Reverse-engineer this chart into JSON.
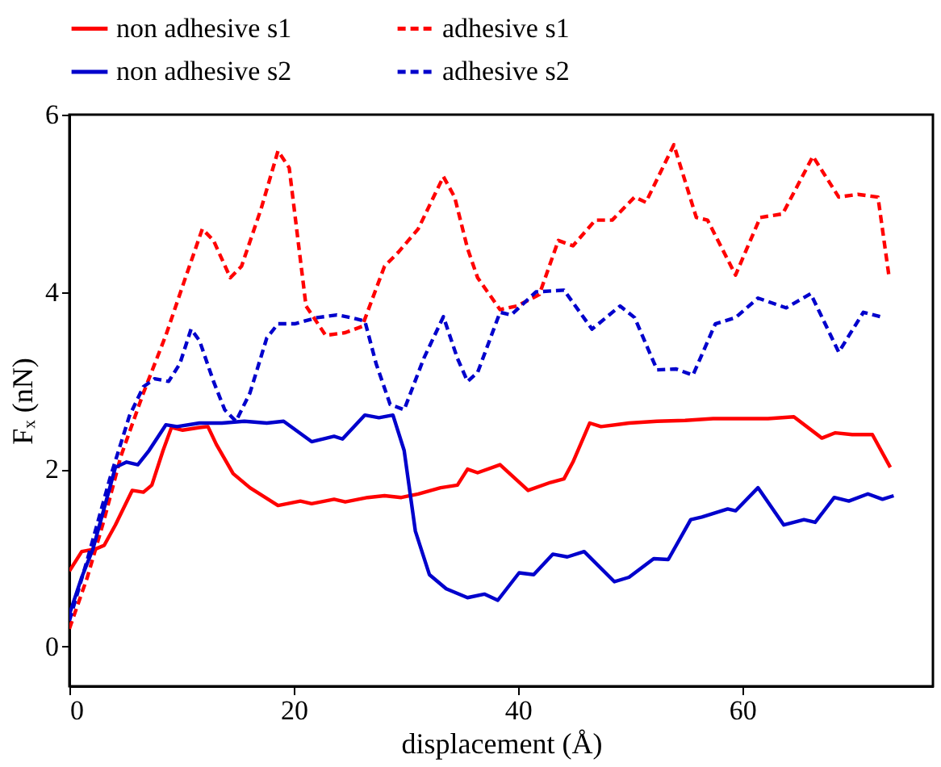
{
  "chart_data": {
    "type": "line",
    "xlabel": "displacement (Å)",
    "ylabel": "Fₓ (nN)",
    "xlim": [
      0,
      77
    ],
    "ylim": [
      -0.45,
      6
    ],
    "xticks": [
      0,
      20,
      40,
      60
    ],
    "yticks": [
      0,
      2,
      4,
      6
    ],
    "grid": false,
    "legend": "top",
    "marker": "none",
    "series": [
      {
        "name": "non adhesive s1",
        "color": "#ff0000",
        "line_style": "solid",
        "x": [
          0,
          1.1,
          2.35,
          3.1,
          4.1,
          5.6,
          6.6,
          7.35,
          8.35,
          9.1,
          10.1,
          11.6,
          12.35,
          13.1,
          14.6,
          16.1,
          18.6,
          20.6,
          21.6,
          23.6,
          24.6,
          26.6,
          28.1,
          29.6,
          31.1,
          33.1,
          34.6,
          35.5,
          36.4,
          38.4,
          40.9,
          42.9,
          44.1,
          44.9,
          46.4,
          47.4,
          49.9,
          52.4,
          54.9,
          57.4,
          59.9,
          62.3,
          64.6,
          67.1,
          68.3,
          69.8,
          71.6,
          73.2
        ],
        "values": [
          0.85,
          1.07,
          1.1,
          1.14,
          1.37,
          1.76,
          1.74,
          1.82,
          2.21,
          2.47,
          2.44,
          2.47,
          2.48,
          2.28,
          1.95,
          1.79,
          1.59,
          1.64,
          1.61,
          1.66,
          1.63,
          1.68,
          1.7,
          1.68,
          1.72,
          1.79,
          1.82,
          2.0,
          1.96,
          2.05,
          1.76,
          1.85,
          1.89,
          2.08,
          2.52,
          2.48,
          2.52,
          2.54,
          2.55,
          2.57,
          2.57,
          2.57,
          2.59,
          2.35,
          2.41,
          2.39,
          2.39,
          2.02
        ]
      },
      {
        "name": "adhesive s1",
        "color": "#ff0000",
        "line_style": "dashed",
        "x": [
          0,
          1.6,
          3.1,
          4.6,
          6.6,
          8.6,
          10.35,
          11.85,
          12.85,
          14.35,
          15.35,
          17.1,
          18.6,
          19.6,
          21.1,
          22.85,
          24.6,
          26.1,
          28.1,
          29.35,
          31.1,
          33.35,
          34.35,
          35.5,
          36.4,
          38.4,
          39.9,
          41.9,
          43.6,
          44.9,
          46.9,
          48.4,
          50.4,
          51.4,
          53.9,
          55.9,
          56.9,
          59.4,
          61.6,
          63.6,
          66.3,
          68.6,
          70.3,
          72.1,
          73.1
        ],
        "values": [
          0.2,
          0.78,
          1.43,
          2.15,
          2.86,
          3.51,
          4.16,
          4.71,
          4.58,
          4.16,
          4.29,
          4.94,
          5.59,
          5.4,
          3.84,
          3.51,
          3.54,
          3.61,
          4.29,
          4.45,
          4.71,
          5.3,
          5.07,
          4.49,
          4.16,
          3.8,
          3.84,
          3.97,
          4.58,
          4.52,
          4.81,
          4.81,
          5.07,
          5.01,
          5.66,
          4.84,
          4.81,
          4.19,
          4.84,
          4.88,
          5.53,
          5.07,
          5.1,
          5.07,
          4.16
        ]
      },
      {
        "name": "non adhesive s2",
        "color": "#0000cc",
        "line_style": "solid",
        "x": [
          0,
          1.1,
          2.1,
          3.1,
          4.1,
          5.1,
          6.1,
          7.1,
          8.6,
          9.6,
          11.6,
          13.6,
          15.6,
          17.6,
          19.1,
          21.6,
          23.6,
          24.35,
          26.35,
          27.6,
          28.85,
          29.85,
          30.85,
          32.1,
          33.6,
          35.5,
          37,
          38.2,
          40.1,
          41.4,
          43.1,
          44.4,
          45.9,
          48.6,
          49.9,
          52.1,
          53.4,
          55.4,
          56.4,
          58.7,
          59.4,
          61.4,
          63.7,
          65.5,
          66.5,
          68.2,
          69.5,
          71.2,
          72.5,
          73.5
        ],
        "values": [
          0.36,
          0.78,
          1.1,
          1.56,
          2.02,
          2.08,
          2.05,
          2.21,
          2.5,
          2.48,
          2.52,
          2.52,
          2.54,
          2.52,
          2.54,
          2.31,
          2.37,
          2.34,
          2.61,
          2.58,
          2.61,
          2.21,
          1.3,
          0.81,
          0.65,
          0.55,
          0.59,
          0.52,
          0.83,
          0.81,
          1.04,
          1.01,
          1.07,
          0.73,
          0.78,
          0.99,
          0.98,
          1.43,
          1.46,
          1.55,
          1.53,
          1.79,
          1.37,
          1.43,
          1.4,
          1.68,
          1.64,
          1.72,
          1.66,
          1.7
        ]
      },
      {
        "name": "adhesive s2",
        "color": "#0000cc",
        "line_style": "dashed",
        "x": [
          0,
          1.6,
          3.6,
          5.35,
          6.6,
          7.6,
          8.85,
          9.85,
          10.85,
          11.6,
          12.85,
          13.85,
          14.85,
          16.1,
          17.6,
          18.6,
          20.1,
          22.1,
          23.85,
          25.1,
          26.35,
          27.35,
          28.6,
          29.85,
          31.6,
          33.35,
          34.6,
          35.5,
          36.4,
          38.4,
          39.4,
          41.6,
          44.1,
          46.6,
          49.1,
          50.4,
          52.4,
          54.1,
          55.6,
          57.6,
          59.4,
          61.4,
          63.9,
          66.1,
          68.6,
          70.8,
          72.6
        ],
        "values": [
          0.29,
          0.98,
          1.89,
          2.6,
          2.93,
          3.02,
          2.99,
          3.19,
          3.58,
          3.45,
          2.99,
          2.67,
          2.54,
          2.86,
          3.48,
          3.64,
          3.64,
          3.71,
          3.74,
          3.71,
          3.67,
          3.19,
          2.73,
          2.67,
          3.25,
          3.72,
          3.25,
          2.99,
          3.09,
          3.77,
          3.74,
          4.0,
          4.02,
          3.58,
          3.84,
          3.71,
          3.12,
          3.13,
          3.06,
          3.64,
          3.71,
          3.93,
          3.82,
          3.98,
          3.32,
          3.77,
          3.71
        ]
      }
    ]
  }
}
